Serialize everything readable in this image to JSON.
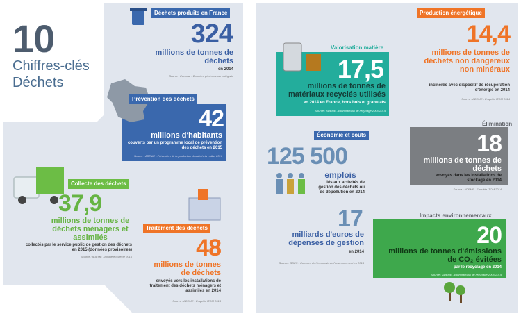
{
  "title": {
    "number": "10",
    "line1": "Chiffres-clés",
    "line2": "Déchets"
  },
  "cards": [
    {
      "header": "Déchets produits en France",
      "figure": "324",
      "text": "millions de tonnes de déchets",
      "note": "en 2014",
      "source": "Source : Eurostat - Données générées par catégorie"
    },
    {
      "header": "Prévention des déchets",
      "figure": "42",
      "text": "millions d'habitants",
      "note": "couverts par un programme local de prévention des déchets en 2015",
      "source": "Source : ADEME - Prévention de la production des déchets - bilan 2016"
    },
    {
      "header": "Collecte des déchets",
      "figure": "37,9",
      "text": "millions de tonnes de déchets ménagers et assimilés",
      "note": "collectés par le service public de gestion des déchets en 2015 (données provisoires)",
      "source": "Source : ADEME - Enquête collecte 2015"
    },
    {
      "header": "Traitement des déchets",
      "figure": "48",
      "text": "millions de tonnes de déchets",
      "note": "envoyés vers les installations de traitement des déchets ménagers et assimilés en 2014",
      "source": "Source : ADEME - Enquête ITOM 2014"
    },
    {
      "header": "Valorisation matière",
      "figure": "17,5",
      "text": "millions de tonnes de matériaux recyclés utilisés",
      "note": "en 2014 en France, hors bois et granulats",
      "source": "Source : ADEME - Bilan national du recyclage 2005-2014"
    },
    {
      "header": "Production énergétique",
      "figure": "14,4",
      "text": "millions de tonnes de déchets non dangereux non minéraux",
      "note": "incinérés avec dispositif de récupération d'énergie en 2014",
      "source": "Source : ADEME - Enquête ITOM 2014"
    },
    {
      "header": "Économie et coûts",
      "figure": "125 500",
      "text": "emplois",
      "note": "liés aux activités de gestion des déchets ou de dépollution en 2014"
    },
    {
      "figure": "17",
      "text": "milliards d'euros de dépenses de gestion",
      "note": "en 2014",
      "source": "Source : SDES - Comptes de l'économie de l'environnement en 2014"
    },
    {
      "header": "Élimination",
      "figure": "18",
      "text": "millions de tonnes de déchets",
      "note": "envoyés dans les installations de stockage en 2014",
      "source": "Source : ADEME - Enquête ITOM 2014"
    },
    {
      "header": "Impacts environnementaux",
      "figure": "20",
      "text": "millions de tonnes d'émissions de CO₂ évitées",
      "note": "par le recyclage en 2014",
      "source": "Source : ADEME - Bilan national du recyclage 2005-2014"
    }
  ]
}
